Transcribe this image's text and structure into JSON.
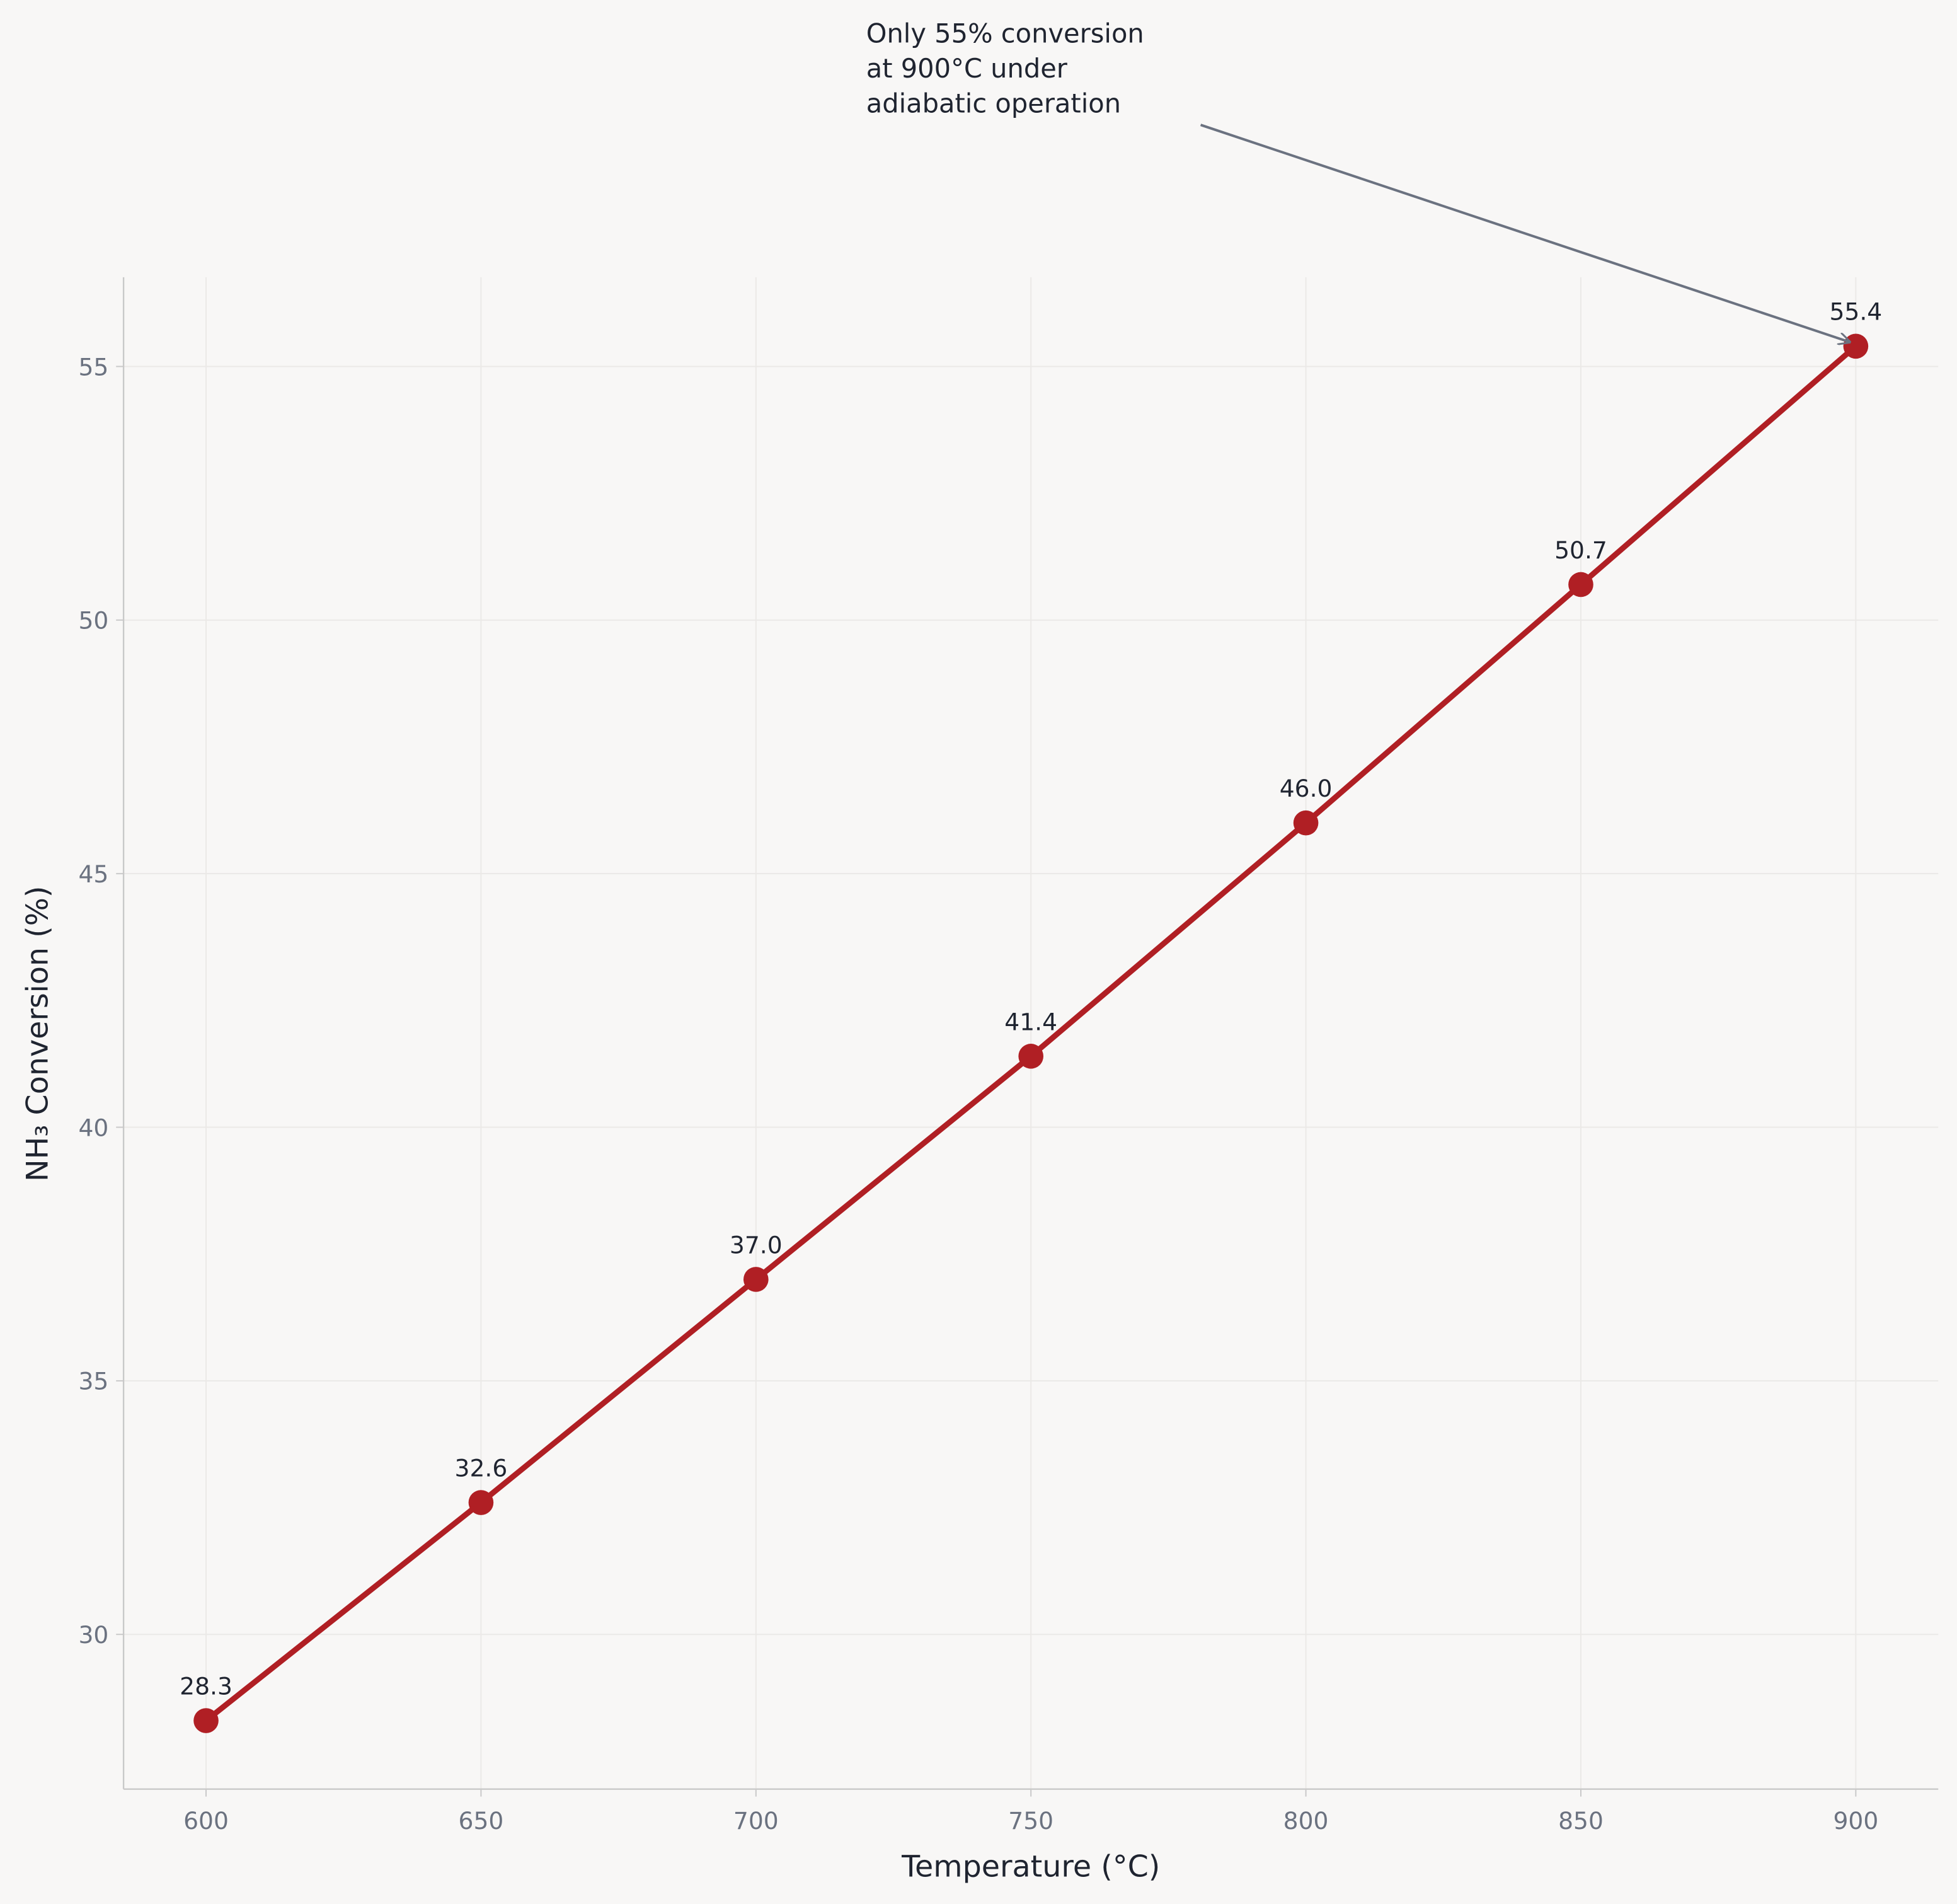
{
  "chart_data": {
    "type": "line",
    "x_label": "Temperature (°C)",
    "y_label": "NH₃ Conversion (%)",
    "x": [
      600,
      650,
      700,
      750,
      800,
      850,
      900
    ],
    "series": [
      {
        "color": "#b01f24",
        "values": [
          28.3,
          32.6,
          37.0,
          41.4,
          46.0,
          50.7,
          55.4
        ],
        "value_labels": [
          "28.3",
          "32.6",
          "37.0",
          "41.4",
          "46.0",
          "50.7",
          "55.4"
        ]
      }
    ],
    "xlim": [
      585,
      915
    ],
    "xticks": [
      600,
      650,
      700,
      750,
      800,
      850,
      900
    ],
    "ylim": [
      26.95,
      56.76
    ],
    "yticks": [
      30,
      35,
      40,
      45,
      50,
      55
    ],
    "grid": true,
    "annotation": [
      "Only 55% conversion",
      "at 900°C under",
      "adiabatic operation"
    ]
  }
}
